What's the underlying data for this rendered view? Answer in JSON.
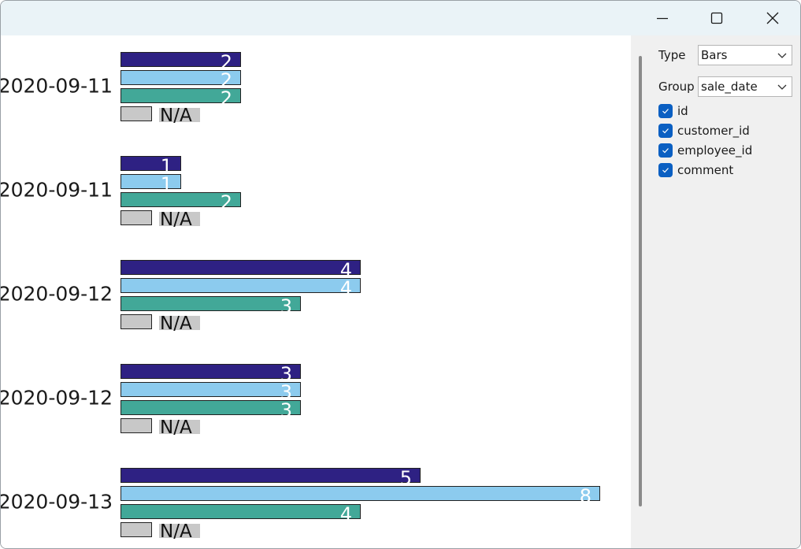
{
  "window": {
    "controls": [
      "minimize-icon",
      "maximize-icon",
      "close-icon"
    ]
  },
  "panel": {
    "type_label": "Type",
    "type_value": "Bars",
    "group_label": "Group",
    "group_value": "sale_date",
    "checkboxes": [
      {
        "label": "id",
        "checked": true
      },
      {
        "label": "customer_id",
        "checked": true
      },
      {
        "label": "employee_id",
        "checked": true
      },
      {
        "label": "comment",
        "checked": true
      }
    ],
    "accent_color": "#0a5fc2"
  },
  "chart_data": {
    "type": "bar",
    "orientation": "horizontal",
    "categories": [
      "2020-09-11",
      "2020-09-11",
      "2020-09-12",
      "2020-09-12",
      "2020-09-13"
    ],
    "series": [
      {
        "name": "id",
        "color": "#2e2183",
        "values": [
          2,
          1,
          4,
          3,
          5
        ]
      },
      {
        "name": "customer_id",
        "color": "#8ccbee",
        "values": [
          2,
          1,
          4,
          3,
          8
        ]
      },
      {
        "name": "employee_id",
        "color": "#42a898",
        "values": [
          2,
          2,
          3,
          3,
          4
        ]
      },
      {
        "name": "comment",
        "color": "#c8c8c8",
        "values": [
          null,
          null,
          null,
          null,
          null
        ],
        "missing_label": "N/A"
      }
    ]
  }
}
